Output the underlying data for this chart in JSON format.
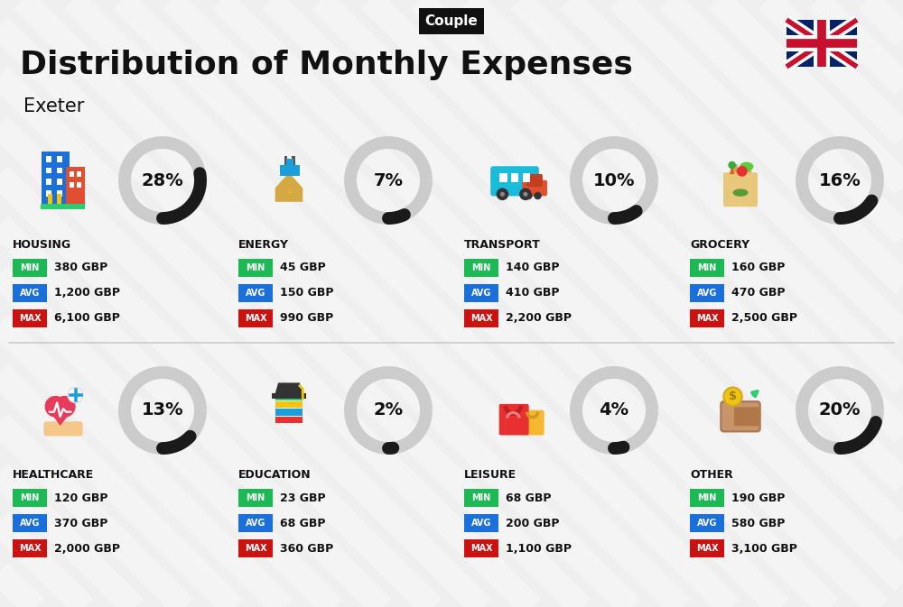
{
  "title": "Distribution of Monthly Expenses",
  "subtitle": "Exeter",
  "tag": "Couple",
  "bg_color": "#efefef",
  "categories": [
    {
      "name": "HOUSING",
      "pct": 28,
      "min": "380 GBP",
      "avg": "1,200 GBP",
      "max": "6,100 GBP",
      "row": 0,
      "col": 0
    },
    {
      "name": "ENERGY",
      "pct": 7,
      "min": "45 GBP",
      "avg": "150 GBP",
      "max": "990 GBP",
      "row": 0,
      "col": 1
    },
    {
      "name": "TRANSPORT",
      "pct": 10,
      "min": "140 GBP",
      "avg": "410 GBP",
      "max": "2,200 GBP",
      "row": 0,
      "col": 2
    },
    {
      "name": "GROCERY",
      "pct": 16,
      "min": "160 GBP",
      "avg": "470 GBP",
      "max": "2,500 GBP",
      "row": 0,
      "col": 3
    },
    {
      "name": "HEALTHCARE",
      "pct": 13,
      "min": "120 GBP",
      "avg": "370 GBP",
      "max": "2,000 GBP",
      "row": 1,
      "col": 0
    },
    {
      "name": "EDUCATION",
      "pct": 2,
      "min": "23 GBP",
      "avg": "68 GBP",
      "max": "360 GBP",
      "row": 1,
      "col": 1
    },
    {
      "name": "LEISURE",
      "pct": 4,
      "min": "68 GBP",
      "avg": "200 GBP",
      "max": "1,100 GBP",
      "row": 1,
      "col": 2
    },
    {
      "name": "OTHER",
      "pct": 20,
      "min": "190 GBP",
      "avg": "580 GBP",
      "max": "3,100 GBP",
      "row": 1,
      "col": 3
    }
  ],
  "min_color": "#1db954",
  "avg_color": "#1a6fdb",
  "max_color": "#cc1111",
  "text_color": "#111111",
  "arc_dark": "#1a1a1a",
  "arc_light": "#cccccc",
  "tag_bg": "#111111",
  "tag_color": "#ffffff",
  "stripe_color": "#ffffff",
  "divider_color": "#cccccc"
}
